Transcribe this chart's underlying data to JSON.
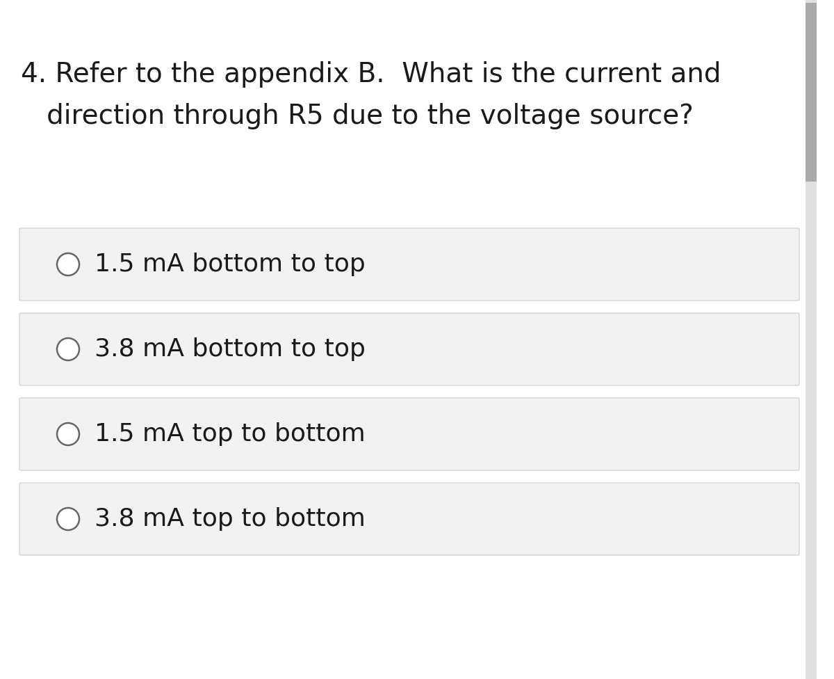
{
  "background_color": "#ffffff",
  "question_line1": "4. Refer to the appendix B.  What is the current and",
  "question_line2": "   direction through R5 due to the voltage source?",
  "options": [
    "1.5 mA bottom to top",
    "3.8 mA bottom to top",
    "1.5 mA top to bottom",
    "3.8 mA top to bottom"
  ],
  "option_box_facecolor": "#f2f2f2",
  "option_box_edgecolor": "#cccccc",
  "option_text_color": "#1a1a1a",
  "question_text_color": "#1a1a1a",
  "radio_edge_color": "#666666",
  "radio_face_color": "#ffffff",
  "font_size_question": 28,
  "font_size_option": 26,
  "scrollbar_track_color": "#e0e0e0",
  "scrollbar_thumb_color": "#aaaaaa",
  "fig_width": 12.0,
  "fig_height": 9.76,
  "dpi": 100
}
